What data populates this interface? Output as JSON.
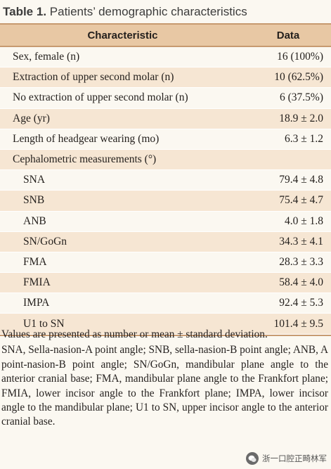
{
  "title": {
    "number": "Table 1.",
    "text": " Patients’ demographic characteristics"
  },
  "table": {
    "headers": [
      "Characteristic",
      "Data"
    ],
    "rows": [
      {
        "label": "Sex, female (n)",
        "value": "16 (100%)",
        "indent": false
      },
      {
        "label": "Extraction of upper second molar (n)",
        "value": "10 (62.5%)",
        "indent": false
      },
      {
        "label": "No extraction of upper second molar (n)",
        "value": "6 (37.5%)",
        "indent": false
      },
      {
        "label": "Age (yr)",
        "value": "18.9 ± 2.0",
        "indent": false
      },
      {
        "label": "Length of headgear wearing (mo)",
        "value": "6.3 ± 1.2",
        "indent": false
      },
      {
        "label": "Cephalometric measurements (°)",
        "value": "",
        "indent": false
      },
      {
        "label": "SNA",
        "value": "79.4 ± 4.8",
        "indent": true
      },
      {
        "label": "SNB",
        "value": "75.4 ± 4.7",
        "indent": true
      },
      {
        "label": "ANB",
        "value": "4.0 ± 1.8",
        "indent": true
      },
      {
        "label": "SN/GoGn",
        "value": "34.3 ± 4.1",
        "indent": true
      },
      {
        "label": "FMA",
        "value": "28.3 ± 3.3",
        "indent": true
      },
      {
        "label": "FMIA",
        "value": "58.4 ± 4.0",
        "indent": true
      },
      {
        "label": "IMPA",
        "value": "92.4 ± 5.3",
        "indent": true
      },
      {
        "label": "U1 to SN",
        "value": "101.4 ± 9.5",
        "indent": true
      }
    ]
  },
  "footnotes": [
    "Values are presented as number or mean ± standard deviation.",
    "SNA, Sella-nasion-A point angle; SNB, sella-nasion-B point angle; ANB, A point-nasion-B point angle; SN/GoGn, mandibular plane angle to the anterior cranial base; FMA, mandibular plane angle to the Frankfort plane; FMIA, lower incisor angle to the Frankfort plane; IMPA, lower incisor angle to the mandibular plane; U1 to SN, upper incisor angle to the anterior cranial base."
  ],
  "watermark": {
    "text": "浙一口腔正畸林军",
    "icon": "wechat-icon"
  }
}
